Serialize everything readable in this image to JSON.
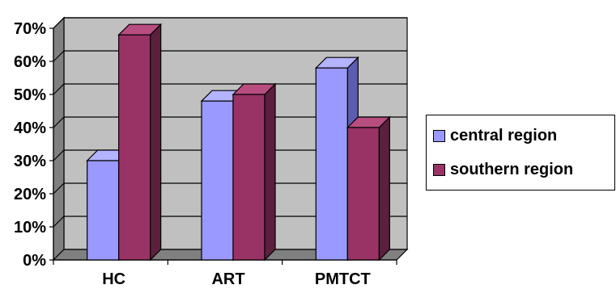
{
  "chart_data": {
    "type": "bar",
    "categories": [
      "HC",
      "ART",
      "PMTCT"
    ],
    "series": [
      {
        "name": "central region",
        "values": [
          30,
          48,
          58
        ]
      },
      {
        "name": "southern region",
        "values": [
          68,
          50,
          40
        ]
      }
    ],
    "y_ticks": [
      "0%",
      "10%",
      "20%",
      "30%",
      "40%",
      "50%",
      "60%",
      "70%"
    ],
    "ylim": [
      0,
      70
    ],
    "grid": true,
    "legend_position": "right",
    "colors": {
      "central_front": "#9999ff",
      "central_side": "#5c5cb0",
      "central_top": "#b3b3ff",
      "southern_front": "#993366",
      "southern_side": "#5c1f3d",
      "southern_top": "#b84d80",
      "wall": "#c0c0c0",
      "floor": "#808080"
    }
  }
}
